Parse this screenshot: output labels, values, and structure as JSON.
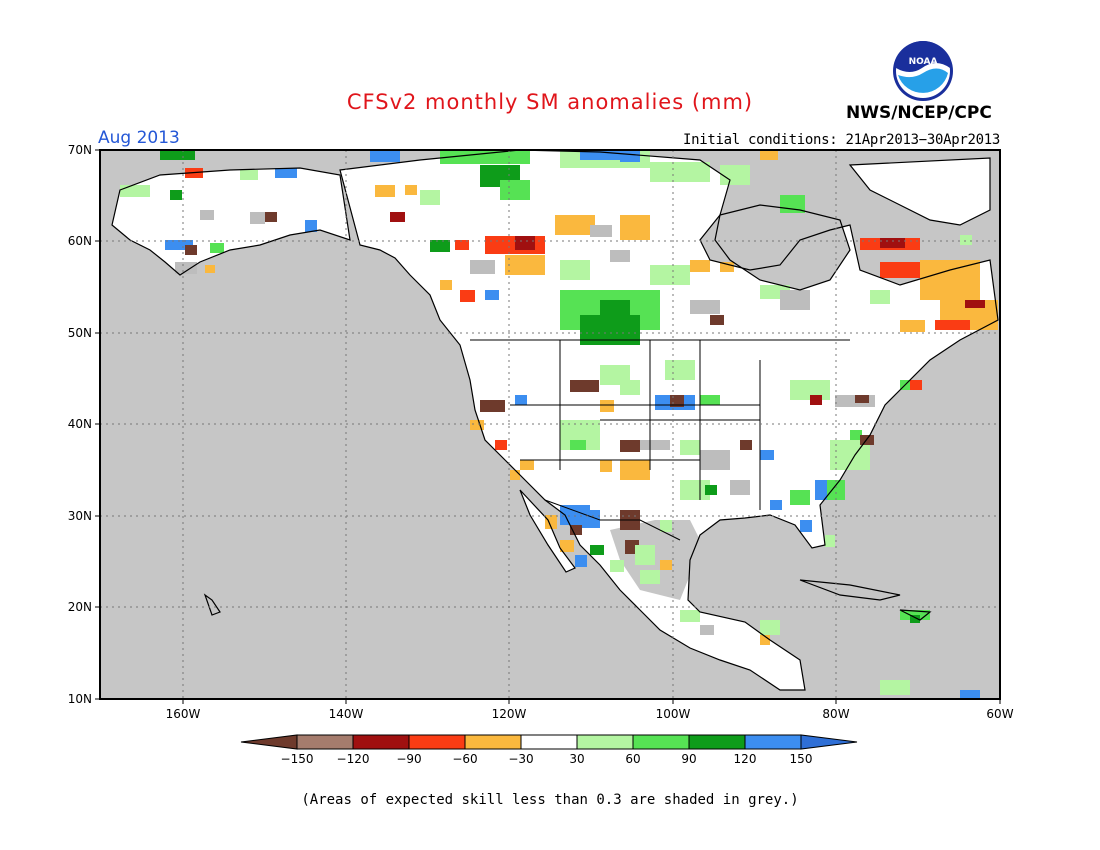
{
  "header": {
    "title": "CFSv2 monthly SM anomalies (mm)",
    "month": "Aug 2013",
    "initial_conditions": "Initial conditions: 21Apr2013−30Apr2013",
    "agency": "NWS/NCEP/CPC",
    "logo_text": "NOAA"
  },
  "map": {
    "lat_labels": [
      "70N",
      "60N",
      "50N",
      "40N",
      "30N",
      "20N",
      "10N"
    ],
    "lon_labels": [
      "160W",
      "140W",
      "120W",
      "100W",
      "80W",
      "60W"
    ],
    "background_color": "#c6c6c6",
    "frame_color": "#000000"
  },
  "colorbar": {
    "labels": [
      "−150",
      "−120",
      "−90",
      "−60",
      "−30",
      "30",
      "60",
      "90",
      "120",
      "150"
    ],
    "colors": [
      "#6e3a2c",
      "#a57c6d",
      "#a01010",
      "#fa3c14",
      "#fab83e",
      "#ffffff",
      "#b4f5a2",
      "#56e254",
      "#0e9c1a",
      "#3c8ef0",
      "#2f6fd6"
    ]
  },
  "footnote": "(Areas of expected skill less than 0.3 are shaded in grey.)"
}
